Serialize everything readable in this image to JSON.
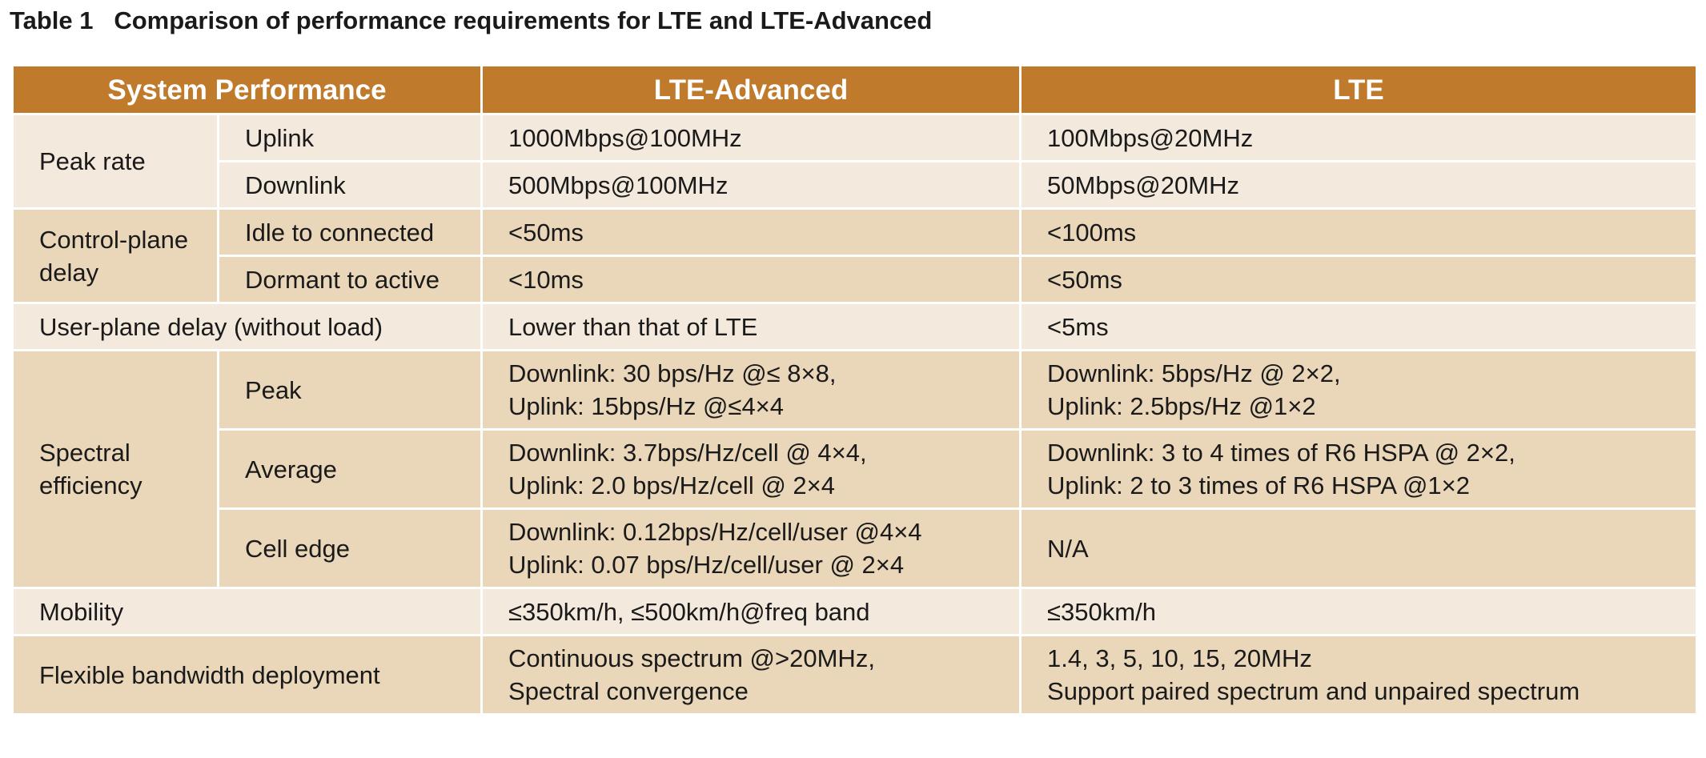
{
  "title": "Table 1   Comparison of performance requirements for LTE and LTE-Advanced",
  "table": {
    "header": [
      "System Performance",
      "LTE-Advanced",
      "LTE"
    ],
    "groups": [
      {
        "label": "Peak rate",
        "rows": [
          {
            "label": "Uplink",
            "lte_advanced": [
              "1000Mbps@100MHz"
            ],
            "lte": [
              "100Mbps@20MHz"
            ]
          },
          {
            "label": "Downlink",
            "lte_advanced": [
              "500Mbps@100MHz"
            ],
            "lte": [
              "50Mbps@20MHz"
            ]
          }
        ]
      },
      {
        "label": "Control-plane delay",
        "rows": [
          {
            "label": "Idle to connected",
            "lte_advanced": [
              "<50ms"
            ],
            "lte": [
              "<100ms"
            ]
          },
          {
            "label": "Dormant to active",
            "lte_advanced": [
              "<10ms"
            ],
            "lte": [
              "<50ms"
            ]
          }
        ]
      },
      {
        "label": "User-plane delay (without load)",
        "lte_advanced": [
          "Lower than that of LTE"
        ],
        "lte": [
          "<5ms"
        ]
      },
      {
        "label": "Spectral efficiency",
        "rows": [
          {
            "label": "Peak",
            "lte_advanced": [
              "Downlink: 30 bps/Hz @≤ 8×8,",
              "Uplink: 15bps/Hz @≤4×4"
            ],
            "lte": [
              "Downlink: 5bps/Hz @ 2×2,",
              "Uplink: 2.5bps/Hz @1×2"
            ]
          },
          {
            "label": "Average",
            "lte_advanced": [
              "Downlink: 3.7bps/Hz/cell @ 4×4,",
              "Uplink: 2.0 bps/Hz/cell @ 2×4"
            ],
            "lte": [
              "Downlink: 3 to 4 times of R6 HSPA @ 2×2,",
              "Uplink: 2 to 3 times of R6 HSPA @1×2"
            ]
          },
          {
            "label": "Cell edge",
            "lte_advanced": [
              "Downlink: 0.12bps/Hz/cell/user @4×4",
              "Uplink: 0.07 bps/Hz/cell/user @ 2×4"
            ],
            "lte": [
              "N/A"
            ]
          }
        ]
      },
      {
        "label": "Mobility",
        "lte_advanced": [
          "≤350km/h, ≤500km/h@freq band"
        ],
        "lte": [
          "≤350km/h"
        ]
      },
      {
        "label": "Flexible bandwidth deployment",
        "lte_advanced": [
          "Continuous spectrum @>20MHz,",
          "Spectral convergence"
        ],
        "lte": [
          "1.4, 3, 5, 10, 15, 20MHz",
          "Support paired spectrum and unpaired spectrum"
        ]
      }
    ]
  }
}
